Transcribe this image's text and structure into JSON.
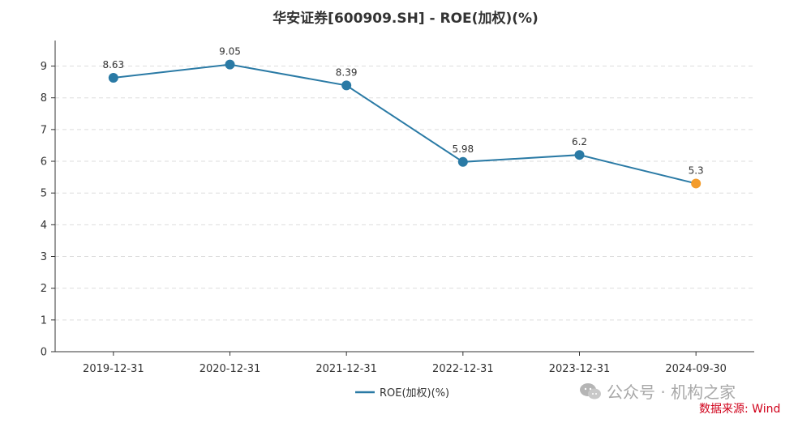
{
  "chart_data": {
    "type": "line",
    "title": "华安证券[600909.SH] - ROE(加权)(%)",
    "xlabel": "",
    "ylabel": "",
    "categories": [
      "2019-12-31",
      "2020-12-31",
      "2021-12-31",
      "2022-12-31",
      "2023-12-31",
      "2024-09-30"
    ],
    "series": [
      {
        "name": "ROE(加权)(%)",
        "values": [
          8.63,
          9.05,
          8.39,
          5.98,
          6.2,
          5.3
        ],
        "value_labels": [
          "8.63",
          "9.05",
          "8.39",
          "5.98",
          "6.2",
          "5.3"
        ],
        "color": "#2a7aa5",
        "last_point_color": "#f39c2c"
      }
    ],
    "ylim": [
      0,
      9
    ],
    "yticks": [
      "0",
      "1",
      "2",
      "3",
      "4",
      "5",
      "6",
      "7",
      "8",
      "9"
    ],
    "grid": true,
    "legend_position": "bottom"
  },
  "watermark": {
    "text": "公众号 · 机构之家",
    "icon": "wechat-icon",
    "color": "#a8a8a8"
  },
  "source_note": {
    "text": "数据来源: Wind",
    "color": "#d0021b"
  }
}
